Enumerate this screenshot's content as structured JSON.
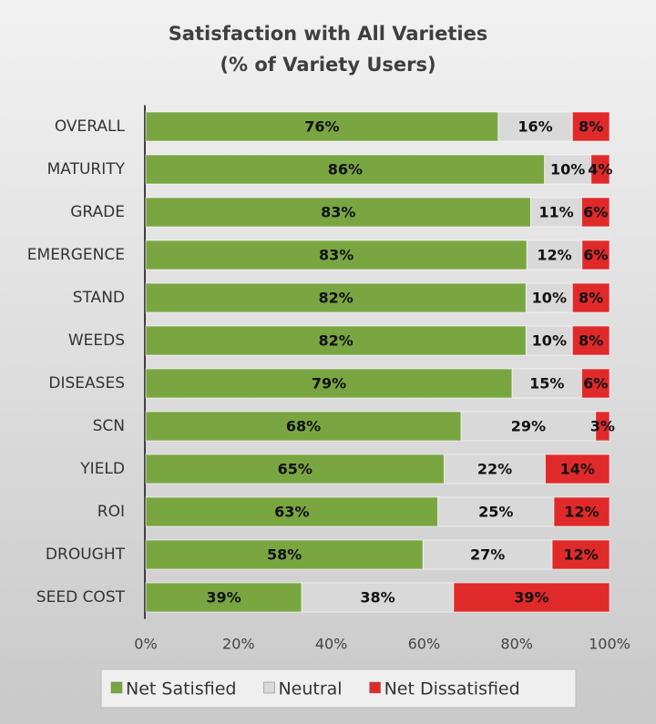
{
  "chart_data": {
    "type": "bar",
    "orientation": "horizontal",
    "stack": "percent",
    "title": [
      "Satisfaction with All Varieties",
      "(% of Variety Users)"
    ],
    "categories": [
      "OVERALL",
      "MATURITY",
      "GRADE",
      "EMERGENCE",
      "STAND",
      "WEEDS",
      "DISEASES",
      "SCN",
      "YIELD",
      "ROI",
      "DROUGHT",
      "SEED COST"
    ],
    "series": [
      {
        "name": "Net Satisfied",
        "color": "#7aa642",
        "values": [
          76,
          86,
          83,
          83,
          82,
          82,
          79,
          68,
          65,
          63,
          58,
          39
        ],
        "value_labels": [
          "76%",
          "86%",
          "83%",
          "83%",
          "82%",
          "82%",
          "79%",
          "68%",
          "65%",
          "63%",
          "58%",
          "39%"
        ]
      },
      {
        "name": "Neutral",
        "color": "#d9d9d9",
        "values": [
          16,
          10,
          11,
          12,
          10,
          10,
          15,
          29,
          22,
          25,
          27,
          38
        ],
        "value_labels": [
          "16%",
          "10%",
          "11%",
          "12%",
          "10%",
          "10%",
          "15%",
          "29%",
          "22%",
          "25%",
          "27%",
          "38%"
        ]
      },
      {
        "name": "Net Dissatisfied",
        "color": "#e02a2a",
        "values": [
          8,
          4,
          6,
          6,
          8,
          8,
          6,
          3,
          14,
          12,
          12,
          39
        ],
        "value_labels": [
          "8%",
          "4%",
          "6%",
          "6%",
          "8%",
          "8%",
          "6%",
          "3%",
          "14%",
          "12%",
          "12%",
          "39%"
        ]
      }
    ],
    "xlim": [
      0,
      100
    ],
    "xticks": [
      {
        "value": 0,
        "label": "0%"
      },
      {
        "value": 20,
        "label": "20%"
      },
      {
        "value": 40,
        "label": "40%"
      },
      {
        "value": 60,
        "label": "60%"
      },
      {
        "value": 80,
        "label": "80%"
      },
      {
        "value": 100,
        "label": "100%"
      }
    ],
    "legend": "bottom"
  }
}
